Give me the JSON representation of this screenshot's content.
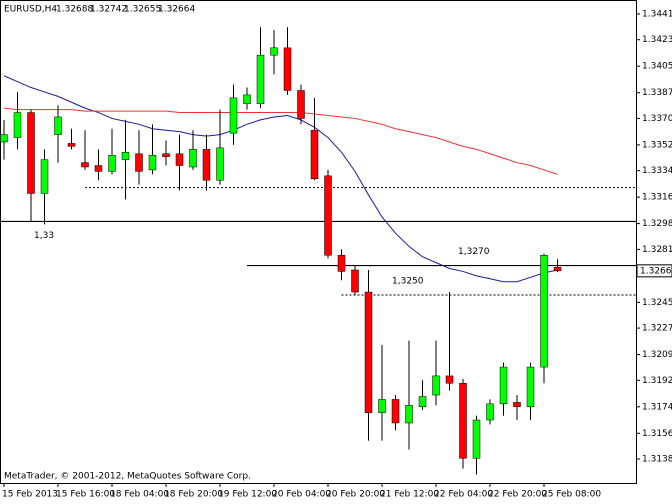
{
  "chart_data": {
    "type": "candlestick",
    "title": "EURUSD,H4",
    "watermark": "MetaTrader, © 2001-2012, MetaQuotes Software Corp.",
    "categories": [
      "15 Feb 2013",
      null,
      null,
      null,
      "15 Feb 16:00",
      null,
      null,
      null,
      "18 Feb 04:00",
      null,
      null,
      null,
      "18 Feb 20:00",
      null,
      null,
      null,
      "19 Feb 12:00",
      null,
      null,
      null,
      "20 Feb 04:00",
      null,
      null,
      null,
      "20 Feb 20:00",
      null,
      null,
      null,
      "21 Feb 12:00",
      null,
      null,
      null,
      "22 Feb 04:00",
      null,
      null,
      null,
      "22 Feb 20:00",
      null,
      null,
      null,
      "25 Feb 08:00",
      null
    ],
    "open": [
      1.3354,
      1.3357,
      1.3374,
      1.3319,
      1.3359,
      1.3353,
      1.334,
      1.3338,
      1.3334,
      1.3342,
      1.3346,
      1.3335,
      1.3346,
      1.3346,
      1.3337,
      1.3349,
      1.3328,
      1.336,
      1.338,
      1.338,
      1.3413,
      1.3418,
      1.3389,
      1.3362,
      1.3331,
      1.3277,
      1.3267,
      1.3252,
      1.317,
      1.3179,
      1.3163,
      1.3174,
      1.3182,
      1.3195,
      1.319,
      1.3139,
      1.3165,
      1.3176,
      1.3177,
      1.3174,
      1.3201,
      1.32688
    ],
    "high": [
      1.3369,
      1.3388,
      1.3376,
      1.3349,
      1.3379,
      1.3363,
      1.3362,
      1.3349,
      1.3363,
      1.3369,
      1.3362,
      1.3366,
      1.3355,
      1.3359,
      1.3362,
      1.3359,
      1.3376,
      1.3393,
      1.3391,
      1.3432,
      1.343,
      1.3432,
      1.3393,
      1.3384,
      1.3335,
      1.3281,
      1.327,
      1.3267,
      1.3216,
      1.3182,
      1.3219,
      1.3192,
      1.3219,
      1.3252,
      1.3193,
      1.3168,
      1.3179,
      1.3204,
      1.3182,
      1.3204,
      1.3278,
      1.32742
    ],
    "low": [
      1.3342,
      1.3349,
      1.33,
      1.3298,
      1.334,
      1.3349,
      1.3335,
      1.3328,
      1.3332,
      1.3315,
      1.3325,
      1.3332,
      1.3338,
      1.3321,
      1.3335,
      1.3321,
      1.3325,
      1.3352,
      1.3376,
      1.3377,
      1.34,
      1.3386,
      1.3366,
      1.3328,
      1.3275,
      1.326,
      1.325,
      1.3151,
      1.3151,
      1.3158,
      1.3145,
      1.3172,
      1.3175,
      1.3185,
      1.3132,
      1.3128,
      1.3162,
      1.3168,
      1.3165,
      1.3165,
      1.319,
      1.32655
    ],
    "close": [
      1.3359,
      1.3374,
      1.3319,
      1.3342,
      1.3371,
      1.3351,
      1.3337,
      1.3334,
      1.3345,
      1.3347,
      1.3334,
      1.3345,
      1.3344,
      1.3338,
      1.3349,
      1.3328,
      1.335,
      1.3384,
      1.3386,
      1.3413,
      1.3418,
      1.3389,
      1.337,
      1.3329,
      1.3277,
      1.3266,
      1.3252,
      1.317,
      1.3179,
      1.3163,
      1.3175,
      1.3181,
      1.3195,
      1.319,
      1.3139,
      1.3165,
      1.3176,
      1.3201,
      1.3174,
      1.3201,
      1.3277,
      1.32664
    ],
    "up_color": "#00ff00",
    "down_color": "#ff0000",
    "lines": [
      {
        "color": "#1a1aa0",
        "values": [
          1.3399,
          1.3395,
          1.3391,
          1.3388,
          1.3385,
          1.3381,
          1.3377,
          1.3374,
          1.337,
          1.3368,
          1.3366,
          1.3363,
          1.3362,
          1.3361,
          1.3359,
          1.3358,
          1.3359,
          1.3362,
          1.3366,
          1.3369,
          1.3371,
          1.3372,
          1.3369,
          1.3364,
          1.3357,
          1.3347,
          1.3334,
          1.3318,
          1.3303,
          1.3292,
          1.3283,
          1.3276,
          1.3272,
          1.3268,
          1.3266,
          1.3263,
          1.3261,
          1.3259,
          1.3259,
          1.3262,
          1.3265,
          1.3267
        ]
      },
      {
        "color": "#ee3333",
        "values": [
          1.3377,
          1.3376,
          1.3376,
          1.3376,
          1.3376,
          1.3376,
          1.3375,
          1.3375,
          1.3375,
          1.3375,
          1.3375,
          1.3375,
          1.3375,
          1.3374,
          1.3374,
          1.3374,
          1.3374,
          1.3374,
          1.3374,
          1.3374,
          1.3374,
          1.3374,
          1.3374,
          1.3373,
          1.3372,
          1.3371,
          1.337,
          1.3368,
          1.3366,
          1.3363,
          1.3361,
          1.3359,
          1.3357,
          1.3354,
          1.3351,
          1.3349,
          1.3346,
          1.3343,
          1.334,
          1.3338,
          1.3335,
          1.3332
        ]
      }
    ],
    "levels": [
      {
        "value": 1.33,
        "label": "1,33",
        "style": "solid"
      },
      {
        "value": 1.3323,
        "style": "dashed"
      },
      {
        "value": 1.327,
        "label": "1,3270",
        "style": "solid"
      },
      {
        "value": 1.325,
        "label": "1,3250",
        "style": "dashed"
      }
    ],
    "ylim": [
      1.31222,
      1.34505
    ],
    "yticks": [
      {
        "value": 1.3441,
        "label": "1.34410"
      },
      {
        "value": 1.34235,
        "label": "1.34235"
      },
      {
        "value": 1.34055,
        "label": "1.34055"
      },
      {
        "value": 1.33875,
        "label": "1.33875"
      },
      {
        "value": 1.337,
        "label": "1.33700"
      },
      {
        "value": 1.3352,
        "label": "1.33520"
      },
      {
        "value": 1.33345,
        "label": "1.33345"
      },
      {
        "value": 1.33165,
        "label": "1.33165"
      },
      {
        "value": 1.32985,
        "label": "1.32985"
      },
      {
        "value": 1.3281,
        "label": "1.32810"
      },
      {
        "value": 1.3245,
        "label": "1.32450"
      },
      {
        "value": 1.32275,
        "label": "1.32275"
      },
      {
        "value": 1.32095,
        "label": "1.32095"
      },
      {
        "value": 1.3192,
        "label": "1.31920"
      },
      {
        "value": 1.3174,
        "label": "1.31740"
      },
      {
        "value": 1.3156,
        "label": "1.31560"
      },
      {
        "value": 1.31385,
        "label": "1.31385"
      }
    ]
  }
}
